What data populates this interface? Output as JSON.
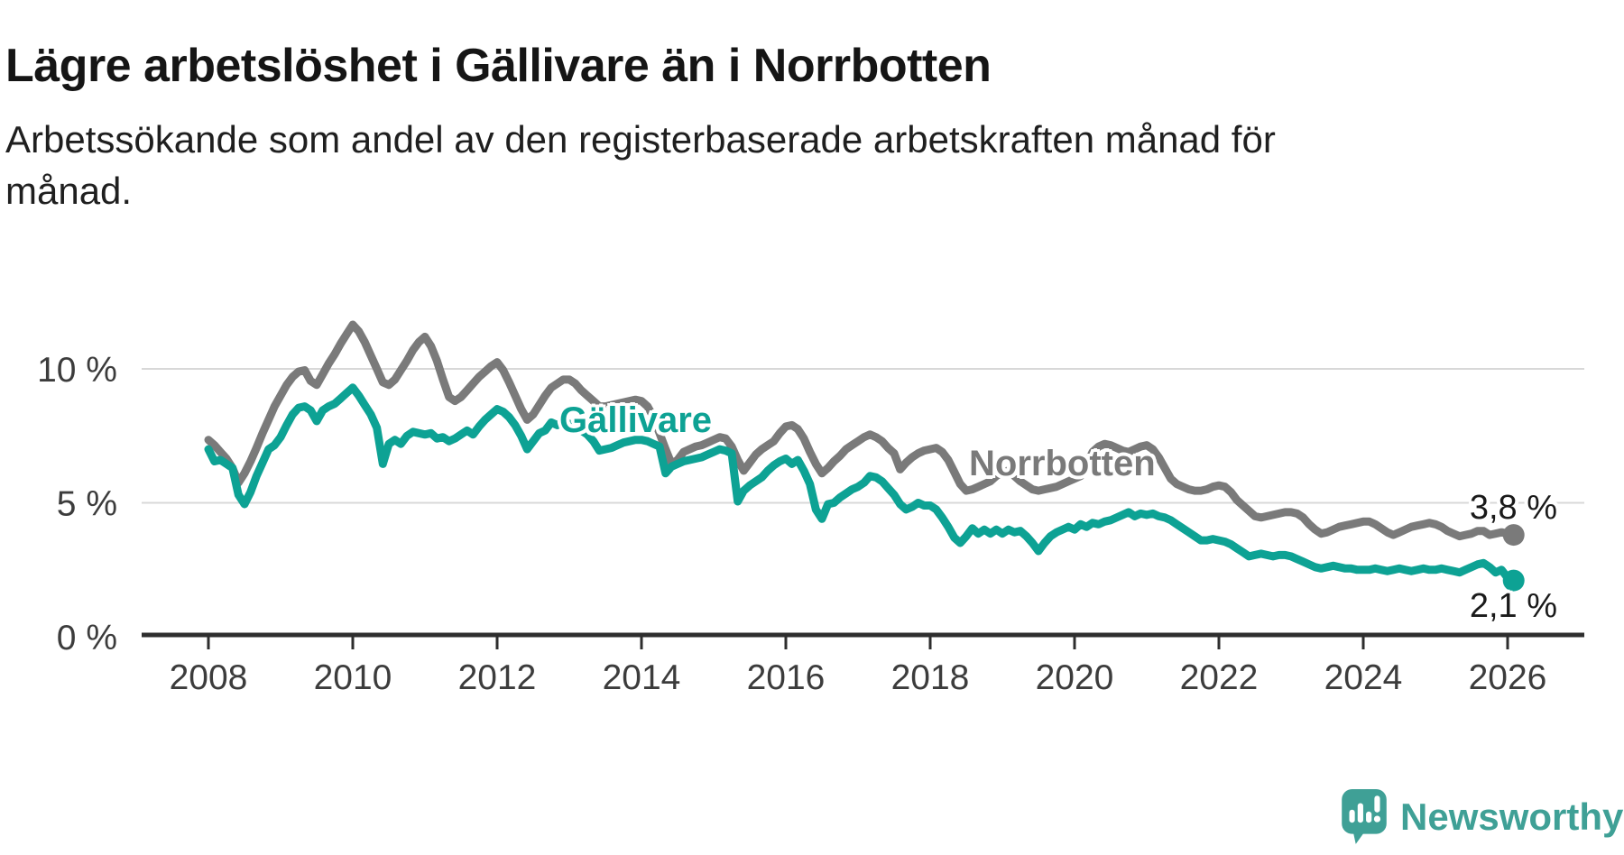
{
  "chart_data": {
    "type": "line",
    "title": "Lägre arbetslöshet i Gällivare än i Norrbotten",
    "subtitle_line1": "Arbetssökande som andel av den registerbaserade arbetskraften månad för",
    "subtitle_line2": "månad.",
    "unit": "%",
    "frequency": "monthly",
    "x_start": "2008-01",
    "x_end": "2026-02",
    "xlabel": "",
    "ylabel": "",
    "ylim": [
      0,
      12.5
    ],
    "grid": "horizontal",
    "legend_position": "inline-labels",
    "x_ticks": [
      2008,
      2010,
      2012,
      2014,
      2016,
      2018,
      2020,
      2022,
      2024,
      2026
    ],
    "y_ticks": [
      {
        "value": 0,
        "label": "0 %"
      },
      {
        "value": 5,
        "label": "5 %"
      },
      {
        "value": 10,
        "label": "10 %"
      }
    ],
    "series": [
      {
        "name": "Gällivare",
        "color": "#0DA294",
        "end_label": "2,1 %",
        "end_value": 2.1,
        "values": [
          7.0,
          6.55,
          6.6,
          6.45,
          6.3,
          5.3,
          4.95,
          5.4,
          6.0,
          6.5,
          7.0,
          7.15,
          7.45,
          7.9,
          8.3,
          8.55,
          8.6,
          8.45,
          8.05,
          8.45,
          8.6,
          8.7,
          8.9,
          9.1,
          9.3,
          9.0,
          8.65,
          8.3,
          7.8,
          6.45,
          7.2,
          7.35,
          7.2,
          7.5,
          7.65,
          7.6,
          7.55,
          7.6,
          7.4,
          7.45,
          7.3,
          7.4,
          7.55,
          7.7,
          7.55,
          7.85,
          8.1,
          8.3,
          8.5,
          8.4,
          8.2,
          7.9,
          7.5,
          7.0,
          7.3,
          7.6,
          7.7,
          8.0,
          7.9,
          8.05,
          7.95,
          7.8,
          7.7,
          7.55,
          7.3,
          6.95,
          7.0,
          7.05,
          7.15,
          7.25,
          7.3,
          7.35,
          7.35,
          7.3,
          7.2,
          7.1,
          6.1,
          6.35,
          6.45,
          6.55,
          6.6,
          6.65,
          6.7,
          6.8,
          6.9,
          7.0,
          6.95,
          6.85,
          5.05,
          5.45,
          5.65,
          5.8,
          5.95,
          6.2,
          6.4,
          6.55,
          6.65,
          6.45,
          6.6,
          6.2,
          5.7,
          4.75,
          4.4,
          4.95,
          5.0,
          5.2,
          5.35,
          5.5,
          5.6,
          5.75,
          6.0,
          5.95,
          5.8,
          5.55,
          5.3,
          4.95,
          4.75,
          4.85,
          5.0,
          4.9,
          4.9,
          4.75,
          4.45,
          4.1,
          3.7,
          3.5,
          3.75,
          4.05,
          3.85,
          4.0,
          3.85,
          4.0,
          3.85,
          4.0,
          3.9,
          3.95,
          3.75,
          3.5,
          3.2,
          3.5,
          3.75,
          3.9,
          4.0,
          4.1,
          4.0,
          4.2,
          4.1,
          4.25,
          4.2,
          4.3,
          4.35,
          4.45,
          4.55,
          4.65,
          4.5,
          4.6,
          4.55,
          4.6,
          4.5,
          4.45,
          4.35,
          4.2,
          4.05,
          3.9,
          3.75,
          3.6,
          3.6,
          3.65,
          3.6,
          3.55,
          3.45,
          3.3,
          3.15,
          3.0,
          3.05,
          3.1,
          3.05,
          3.0,
          3.05,
          3.05,
          3.0,
          2.9,
          2.8,
          2.7,
          2.6,
          2.55,
          2.6,
          2.65,
          2.6,
          2.55,
          2.55,
          2.5,
          2.5,
          2.5,
          2.55,
          2.5,
          2.45,
          2.5,
          2.55,
          2.5,
          2.45,
          2.5,
          2.55,
          2.5,
          2.5,
          2.55,
          2.5,
          2.45,
          2.4,
          2.5,
          2.6,
          2.7,
          2.75,
          2.6,
          2.4,
          2.5,
          2.2,
          2.1
        ]
      },
      {
        "name": "Norrbotten",
        "color": "#7A7A7A",
        "end_label": "3,8 %",
        "end_value": 3.8,
        "values": [
          7.35,
          7.15,
          6.9,
          6.65,
          6.3,
          5.75,
          6.1,
          6.55,
          7.05,
          7.6,
          8.1,
          8.6,
          9.0,
          9.4,
          9.7,
          9.9,
          9.95,
          9.55,
          9.4,
          9.8,
          10.2,
          10.55,
          10.95,
          11.3,
          11.65,
          11.4,
          11.0,
          10.5,
          10.0,
          9.5,
          9.4,
          9.6,
          9.95,
          10.3,
          10.7,
          11.0,
          11.2,
          10.85,
          10.3,
          9.6,
          8.95,
          8.8,
          8.95,
          9.2,
          9.45,
          9.7,
          9.9,
          10.1,
          10.25,
          9.95,
          9.5,
          9.0,
          8.5,
          8.1,
          8.3,
          8.65,
          9.0,
          9.3,
          9.45,
          9.6,
          9.6,
          9.45,
          9.2,
          9.0,
          8.8,
          8.6,
          8.6,
          8.65,
          8.7,
          8.75,
          8.8,
          8.85,
          8.8,
          8.6,
          8.2,
          7.6,
          7.0,
          6.45,
          6.6,
          6.9,
          7.0,
          7.1,
          7.15,
          7.25,
          7.35,
          7.45,
          7.4,
          7.1,
          6.6,
          6.2,
          6.5,
          6.8,
          7.0,
          7.15,
          7.3,
          7.6,
          7.85,
          7.9,
          7.75,
          7.4,
          6.9,
          6.45,
          6.1,
          6.3,
          6.55,
          6.75,
          7.0,
          7.15,
          7.3,
          7.45,
          7.55,
          7.45,
          7.3,
          7.05,
          6.85,
          6.25,
          6.5,
          6.7,
          6.85,
          6.95,
          7.0,
          7.05,
          6.9,
          6.6,
          6.15,
          5.7,
          5.45,
          5.5,
          5.6,
          5.7,
          5.8,
          6.0,
          6.15,
          6.2,
          6.0,
          5.8,
          5.65,
          5.5,
          5.45,
          5.5,
          5.55,
          5.6,
          5.7,
          5.8,
          5.9,
          6.0,
          6.4,
          6.9,
          7.1,
          7.2,
          7.15,
          7.05,
          6.95,
          6.9,
          7.0,
          7.1,
          7.15,
          7.0,
          6.7,
          6.3,
          5.9,
          5.7,
          5.6,
          5.5,
          5.45,
          5.45,
          5.5,
          5.6,
          5.65,
          5.6,
          5.4,
          5.1,
          4.9,
          4.7,
          4.5,
          4.45,
          4.5,
          4.55,
          4.6,
          4.65,
          4.65,
          4.6,
          4.45,
          4.2,
          4.0,
          3.85,
          3.9,
          4.0,
          4.1,
          4.15,
          4.2,
          4.25,
          4.3,
          4.3,
          4.2,
          4.05,
          3.9,
          3.8,
          3.9,
          4.0,
          4.1,
          4.15,
          4.2,
          4.25,
          4.2,
          4.1,
          3.95,
          3.85,
          3.75,
          3.8,
          3.85,
          3.95,
          3.95,
          3.8,
          3.85,
          3.9,
          3.85,
          3.8
        ]
      }
    ]
  },
  "footer": {
    "brand": "Newsworthy"
  }
}
